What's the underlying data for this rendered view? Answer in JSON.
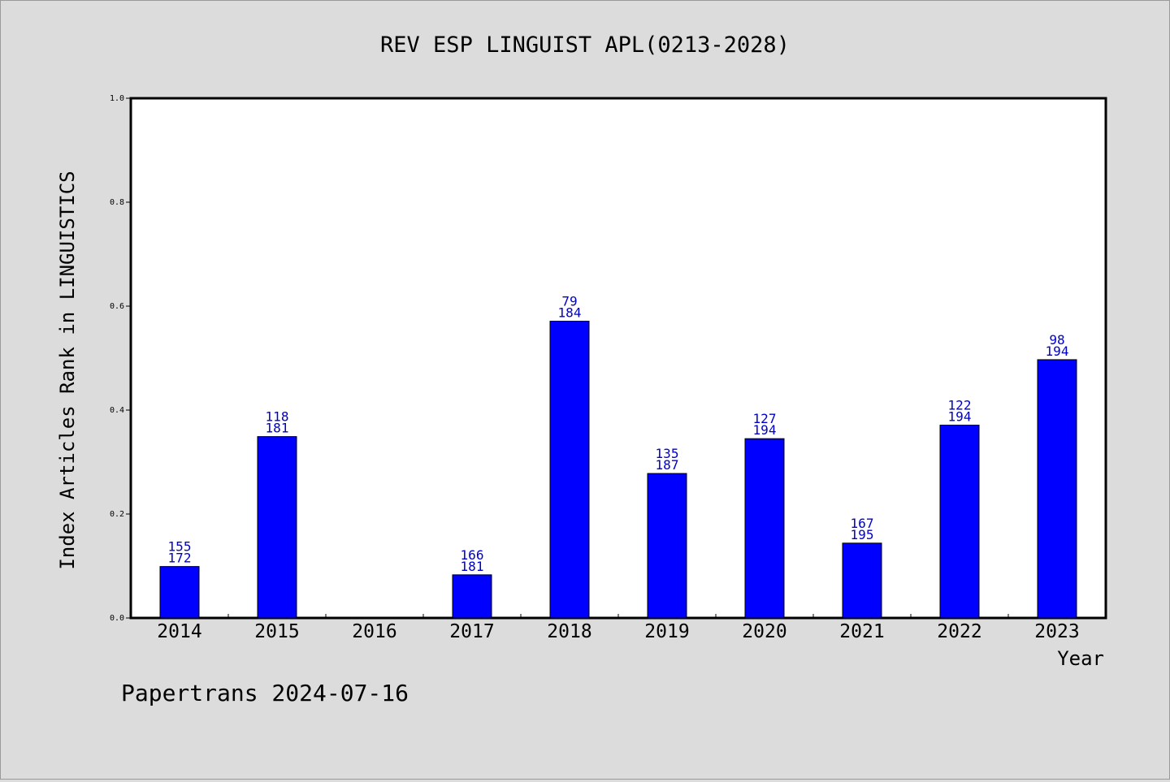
{
  "colors": {
    "background": "#dcdcdc",
    "plot_background": "#ffffff",
    "bar": "#0000ff",
    "bar_label": "#0000cc",
    "axis": "#000000"
  },
  "footer": "Papertrans 2024-07-16",
  "chart_data": {
    "type": "bar",
    "title": "REV ESP LINGUIST APL(0213-2028)",
    "xlabel": "Year",
    "ylabel": "Index Articles Rank in LINGUISTICS",
    "ylim": [
      0,
      1.0
    ],
    "yticks": [
      "0.0",
      "0.2",
      "0.4",
      "0.6",
      "0.8",
      "1.0"
    ],
    "grid": false,
    "categories": [
      "2014",
      "2015",
      "2016",
      "2017",
      "2018",
      "2019",
      "2020",
      "2021",
      "2022",
      "2023"
    ],
    "values": [
      0.099,
      0.349,
      null,
      0.083,
      0.571,
      0.278,
      0.345,
      0.144,
      0.371,
      0.497
    ],
    "labels_top": [
      "155",
      "118",
      "",
      "166",
      "79",
      "135",
      "127",
      "167",
      "122",
      "98"
    ],
    "labels_bottom": [
      "172",
      "181",
      "",
      "181",
      "184",
      "187",
      "194",
      "195",
      "194",
      "194"
    ]
  }
}
